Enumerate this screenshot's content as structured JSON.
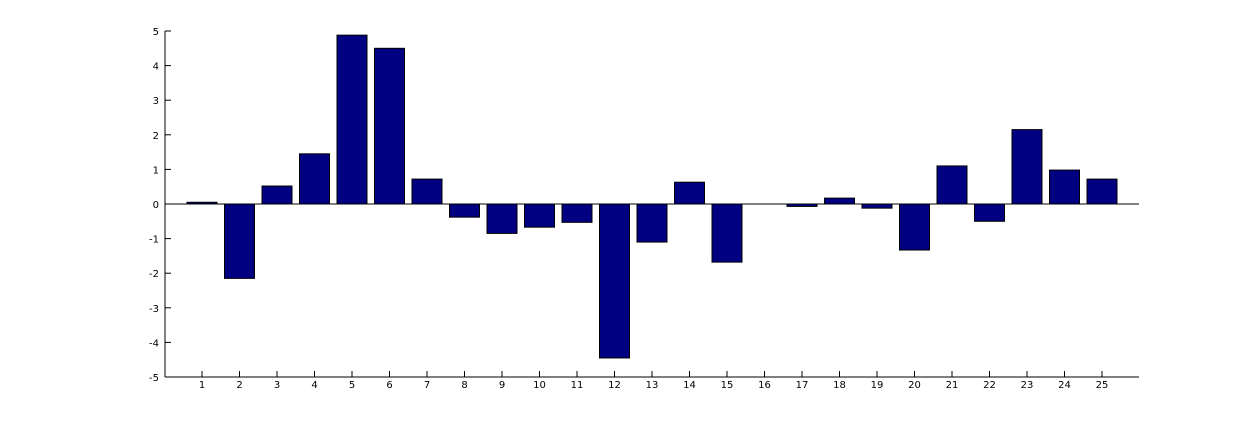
{
  "chart_data": {
    "type": "bar",
    "categories": [
      "1",
      "2",
      "3",
      "4",
      "5",
      "6",
      "7",
      "8",
      "9",
      "10",
      "11",
      "12",
      "13",
      "14",
      "15",
      "16",
      "17",
      "18",
      "19",
      "20",
      "21",
      "22",
      "23",
      "24",
      "25"
    ],
    "values": [
      0.05,
      -2.15,
      0.52,
      1.45,
      4.88,
      4.5,
      0.72,
      -0.38,
      -0.85,
      -0.67,
      -0.53,
      -4.45,
      -1.1,
      0.63,
      -1.68,
      0,
      -0.07,
      0.17,
      -0.12,
      -1.33,
      1.1,
      -0.5,
      2.15,
      0.98,
      0.72
    ],
    "ylim": [
      -5,
      5
    ],
    "yticks": [
      "-5",
      "-4",
      "-3",
      "-2",
      "-1",
      "0",
      "1",
      "2",
      "3",
      "4",
      "5"
    ],
    "bar_color": "#000080",
    "grid": false,
    "title": "",
    "xlabel": "",
    "ylabel": ""
  }
}
